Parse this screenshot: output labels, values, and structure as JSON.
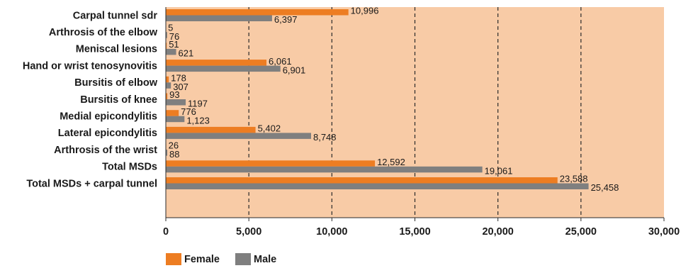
{
  "chart_data": {
    "type": "bar",
    "orientation": "horizontal",
    "categories": [
      "Carpal tunnel sdr",
      "Arthrosis of the elbow",
      "Meniscal lesions",
      "Hand or wrist tenosynovitis",
      "Bursitis of elbow",
      "Bursitis of knee",
      "Medial epicondylitis",
      "Lateral epicondylitis",
      "Arthrosis of the wrist",
      "Total MSDs",
      "Total MSDs + carpal tunnel"
    ],
    "series": [
      {
        "name": "Female",
        "color": "#ed7d22",
        "values": [
          10996,
          5,
          51,
          6061,
          178,
          93,
          776,
          5402,
          26,
          12592,
          23588
        ],
        "labels": [
          "10,996",
          "5",
          "51",
          "6,061",
          "178",
          "93",
          "776",
          "5,402",
          "26",
          "12,592",
          "23,588"
        ]
      },
      {
        "name": "Male",
        "color": "#7f7f7f",
        "values": [
          6397,
          76,
          621,
          6901,
          307,
          1197,
          1123,
          8748,
          88,
          19061,
          25458
        ],
        "labels": [
          "6,397",
          "76",
          "621",
          "6,901",
          "307",
          "1197",
          "1,123",
          "8,748",
          "88",
          "19,061",
          "25,458"
        ]
      }
    ],
    "xlim": [
      0,
      30000
    ],
    "xticks": [
      0,
      5000,
      10000,
      15000,
      20000,
      25000,
      30000
    ],
    "xtick_labels": [
      "0",
      "5,000",
      "10,000",
      "15,000",
      "20,000",
      "25,000",
      "30,000"
    ],
    "grid": "vertical dashed",
    "plot_background": "#f8cba6",
    "legend_position": "bottom-left",
    "title": "",
    "xlabel": "",
    "ylabel": ""
  }
}
